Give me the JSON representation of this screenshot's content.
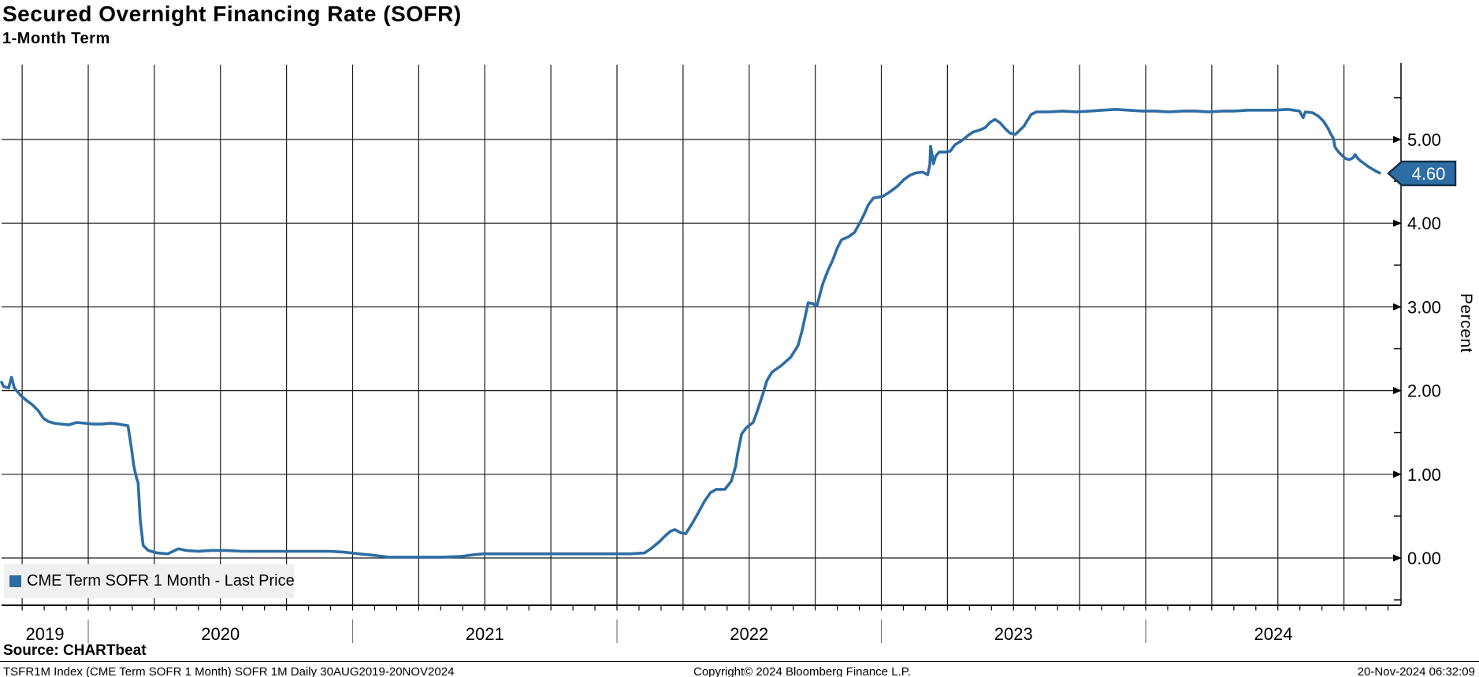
{
  "header": {
    "title": "Secured Overnight Financing Rate (SOFR)",
    "subtitle": "1-Month Term"
  },
  "legend": {
    "label": "CME Term SOFR 1 Month - Last Price",
    "swatch_color": "#2e6da4"
  },
  "last_price_badge": {
    "value": "4.60",
    "bg": "#2e6da4",
    "border": "#14314b",
    "text_color": "#ffffff"
  },
  "footer": {
    "source": "Source: CHARTbeat",
    "meta": "TSFR1M Index (CME Term SOFR 1 Month) SOFR 1M  Daily 30AUG2019-20NOV2024",
    "copyright": "Copyright© 2024 Bloomberg Finance L.P.",
    "timestamp": "20-Nov-2024 06:32:09"
  },
  "chart_data": {
    "type": "line",
    "title": "Secured Overnight Financing Rate (SOFR)",
    "subtitle": "1-Month Term",
    "ylabel": "Percent",
    "grid": "both",
    "legend_position": "bottom-left",
    "x_range": [
      "2019-08-30",
      "2024-11-20"
    ],
    "x_tick_labels": [
      "2019",
      "2020",
      "2021",
      "2022",
      "2023",
      "2024"
    ],
    "x_minor_tick_unit": "month",
    "x_grid_unit": "quarter",
    "ylim": [
      -0.57,
      6.05
    ],
    "y_major_ticks": [
      0,
      1,
      2,
      3,
      4,
      5
    ],
    "y_tick_labels": [
      "0.00",
      "1.00",
      "2.00",
      "3.00",
      "4.00",
      "5.00"
    ],
    "y_minor_ticks": [
      -0.5,
      0.5,
      1.5,
      2.5,
      3.5,
      4.5,
      5.5
    ],
    "series": [
      {
        "name": "CME Term SOFR 1 Month - Last Price",
        "color": "#2e6da4",
        "last_price": 4.6,
        "points": [
          [
            "2019-08-30",
            2.1
          ],
          [
            "2019-09-06",
            2.05
          ],
          [
            "2019-09-13",
            2.03
          ],
          [
            "2019-09-17",
            2.16
          ],
          [
            "2019-09-21",
            2.03
          ],
          [
            "2019-09-30",
            1.94
          ],
          [
            "2019-10-08",
            1.88
          ],
          [
            "2019-10-16",
            1.83
          ],
          [
            "2019-10-24",
            1.76
          ],
          [
            "2019-10-31",
            1.67
          ],
          [
            "2019-11-07",
            1.63
          ],
          [
            "2019-11-15",
            1.61
          ],
          [
            "2019-11-25",
            1.6
          ],
          [
            "2019-12-05",
            1.59
          ],
          [
            "2019-12-16",
            1.62
          ],
          [
            "2019-12-27",
            1.61
          ],
          [
            "2020-01-08",
            1.6
          ],
          [
            "2020-01-20",
            1.6
          ],
          [
            "2020-02-01",
            1.61
          ],
          [
            "2020-02-12",
            1.6
          ],
          [
            "2020-02-25",
            1.58
          ],
          [
            "2020-03-01",
            1.3
          ],
          [
            "2020-03-04",
            1.1
          ],
          [
            "2020-03-08",
            0.95
          ],
          [
            "2020-03-10",
            0.9
          ],
          [
            "2020-03-13",
            0.45
          ],
          [
            "2020-03-17",
            0.15
          ],
          [
            "2020-03-24",
            0.09
          ],
          [
            "2020-04-05",
            0.06
          ],
          [
            "2020-04-20",
            0.05
          ],
          [
            "2020-05-05",
            0.11
          ],
          [
            "2020-05-15",
            0.09
          ],
          [
            "2020-06-01",
            0.08
          ],
          [
            "2020-06-20",
            0.09
          ],
          [
            "2020-07-10",
            0.09
          ],
          [
            "2020-08-01",
            0.08
          ],
          [
            "2020-09-01",
            0.08
          ],
          [
            "2020-10-01",
            0.08
          ],
          [
            "2020-11-01",
            0.08
          ],
          [
            "2020-12-01",
            0.08
          ],
          [
            "2020-12-20",
            0.07
          ],
          [
            "2021-01-10",
            0.05
          ],
          [
            "2021-02-01",
            0.03
          ],
          [
            "2021-02-20",
            0.01
          ],
          [
            "2021-03-15",
            0.01
          ],
          [
            "2021-04-10",
            0.01
          ],
          [
            "2021-05-05",
            0.01
          ],
          [
            "2021-06-01",
            0.02
          ],
          [
            "2021-06-18",
            0.04
          ],
          [
            "2021-07-01",
            0.05
          ],
          [
            "2021-08-01",
            0.05
          ],
          [
            "2021-09-01",
            0.05
          ],
          [
            "2021-10-01",
            0.05
          ],
          [
            "2021-11-01",
            0.05
          ],
          [
            "2021-12-01",
            0.05
          ],
          [
            "2022-01-01",
            0.05
          ],
          [
            "2022-01-20",
            0.05
          ],
          [
            "2022-02-08",
            0.06
          ],
          [
            "2022-02-18",
            0.12
          ],
          [
            "2022-02-28",
            0.19
          ],
          [
            "2022-03-08",
            0.26
          ],
          [
            "2022-03-16",
            0.32
          ],
          [
            "2022-03-22",
            0.34
          ],
          [
            "2022-03-30",
            0.3
          ],
          [
            "2022-04-06",
            0.29
          ],
          [
            "2022-04-14",
            0.4
          ],
          [
            "2022-04-22",
            0.52
          ],
          [
            "2022-05-02",
            0.68
          ],
          [
            "2022-05-10",
            0.78
          ],
          [
            "2022-05-18",
            0.82
          ],
          [
            "2022-05-30",
            0.82
          ],
          [
            "2022-06-08",
            0.92
          ],
          [
            "2022-06-14",
            1.1
          ],
          [
            "2022-06-16",
            1.22
          ],
          [
            "2022-06-22",
            1.48
          ],
          [
            "2022-06-29",
            1.56
          ],
          [
            "2022-07-08",
            1.62
          ],
          [
            "2022-07-14",
            1.76
          ],
          [
            "2022-07-21",
            1.95
          ],
          [
            "2022-07-27",
            2.12
          ],
          [
            "2022-08-03",
            2.22
          ],
          [
            "2022-08-16",
            2.3
          ],
          [
            "2022-08-29",
            2.4
          ],
          [
            "2022-09-08",
            2.54
          ],
          [
            "2022-09-14",
            2.73
          ],
          [
            "2022-09-19",
            2.93
          ],
          [
            "2022-09-22",
            3.05
          ],
          [
            "2022-09-28",
            3.04
          ],
          [
            "2022-10-04",
            3.01
          ],
          [
            "2022-10-12",
            3.27
          ],
          [
            "2022-10-19",
            3.43
          ],
          [
            "2022-10-26",
            3.56
          ],
          [
            "2022-11-01",
            3.7
          ],
          [
            "2022-11-07",
            3.8
          ],
          [
            "2022-11-17",
            3.84
          ],
          [
            "2022-11-25",
            3.89
          ],
          [
            "2022-12-02",
            4.0
          ],
          [
            "2022-12-08",
            4.1
          ],
          [
            "2022-12-14",
            4.22
          ],
          [
            "2022-12-21",
            4.3
          ],
          [
            "2023-01-03",
            4.32
          ],
          [
            "2023-01-12",
            4.37
          ],
          [
            "2023-01-23",
            4.44
          ],
          [
            "2023-02-01",
            4.52
          ],
          [
            "2023-02-09",
            4.57
          ],
          [
            "2023-02-17",
            4.6
          ],
          [
            "2023-02-27",
            4.61
          ],
          [
            "2023-03-06",
            4.58
          ],
          [
            "2023-03-09",
            4.7
          ],
          [
            "2023-03-10",
            4.92
          ],
          [
            "2023-03-14",
            4.71
          ],
          [
            "2023-03-17",
            4.8
          ],
          [
            "2023-03-22",
            4.85
          ],
          [
            "2023-03-31",
            4.85
          ],
          [
            "2023-04-06",
            4.86
          ],
          [
            "2023-04-13",
            4.94
          ],
          [
            "2023-04-21",
            4.98
          ],
          [
            "2023-05-01",
            5.05
          ],
          [
            "2023-05-08",
            5.09
          ],
          [
            "2023-05-16",
            5.11
          ],
          [
            "2023-05-24",
            5.14
          ],
          [
            "2023-06-01",
            5.21
          ],
          [
            "2023-06-07",
            5.24
          ],
          [
            "2023-06-14",
            5.2
          ],
          [
            "2023-06-21",
            5.13
          ],
          [
            "2023-06-27",
            5.08
          ],
          [
            "2023-07-05",
            5.06
          ],
          [
            "2023-07-11",
            5.11
          ],
          [
            "2023-07-17",
            5.16
          ],
          [
            "2023-07-21",
            5.22
          ],
          [
            "2023-07-27",
            5.3
          ],
          [
            "2023-08-03",
            5.33
          ],
          [
            "2023-08-21",
            5.33
          ],
          [
            "2023-09-08",
            5.34
          ],
          [
            "2023-09-27",
            5.33
          ],
          [
            "2023-10-16",
            5.34
          ],
          [
            "2023-11-03",
            5.35
          ],
          [
            "2023-11-21",
            5.36
          ],
          [
            "2023-12-08",
            5.35
          ],
          [
            "2023-12-27",
            5.34
          ],
          [
            "2024-01-15",
            5.34
          ],
          [
            "2024-02-02",
            5.33
          ],
          [
            "2024-02-21",
            5.34
          ],
          [
            "2024-03-11",
            5.34
          ],
          [
            "2024-03-28",
            5.33
          ],
          [
            "2024-04-16",
            5.34
          ],
          [
            "2024-05-03",
            5.34
          ],
          [
            "2024-05-22",
            5.35
          ],
          [
            "2024-06-10",
            5.35
          ],
          [
            "2024-06-27",
            5.35
          ],
          [
            "2024-07-16",
            5.36
          ],
          [
            "2024-08-01",
            5.34
          ],
          [
            "2024-08-06",
            5.26
          ],
          [
            "2024-08-09",
            5.33
          ],
          [
            "2024-08-19",
            5.32
          ],
          [
            "2024-08-27",
            5.28
          ],
          [
            "2024-09-03",
            5.22
          ],
          [
            "2024-09-09",
            5.14
          ],
          [
            "2024-09-13",
            5.07
          ],
          [
            "2024-09-17",
            5.01
          ],
          [
            "2024-09-19",
            4.91
          ],
          [
            "2024-09-24",
            4.85
          ],
          [
            "2024-09-30",
            4.8
          ],
          [
            "2024-10-04",
            4.77
          ],
          [
            "2024-10-09",
            4.76
          ],
          [
            "2024-10-14",
            4.78
          ],
          [
            "2024-10-17",
            4.82
          ],
          [
            "2024-10-21",
            4.77
          ],
          [
            "2024-10-25",
            4.74
          ],
          [
            "2024-10-30",
            4.71
          ],
          [
            "2024-11-05",
            4.67
          ],
          [
            "2024-11-11",
            4.64
          ],
          [
            "2024-11-15",
            4.62
          ],
          [
            "2024-11-20",
            4.6
          ]
        ]
      }
    ]
  }
}
